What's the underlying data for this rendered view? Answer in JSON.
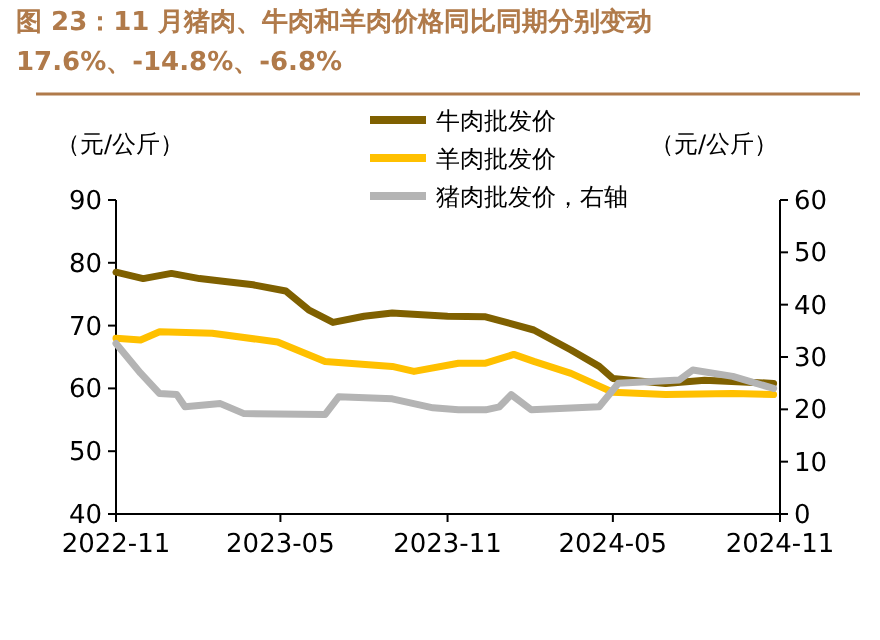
{
  "chart_data": {
    "type": "line",
    "title": "图 23：11 月猪肉、牛肉和羊肉价格同比同期分别变动 17.6%、-14.8%、-6.8%",
    "ylabel": "（元/公斤）",
    "y2label": "（元/公斤）",
    "xlim": [
      "2022-11",
      "2024-11"
    ],
    "xticks": [
      "2022-11",
      "2023-05",
      "2023-11",
      "2024-05",
      "2024-11"
    ],
    "ylim": [
      40,
      90
    ],
    "yticks": [
      40,
      50,
      60,
      70,
      80,
      90
    ],
    "y2lim": [
      0,
      60
    ],
    "y2ticks": [
      0,
      10,
      20,
      30,
      40,
      50,
      60
    ],
    "legend": "top",
    "grid": false,
    "line_style": "solid",
    "series": [
      {
        "name": "牛肉批发价",
        "color": "#7f6000",
        "x": [
          "2022-11-01",
          "2022-12-01",
          "2023-01-01",
          "2023-02-01",
          "2023-03-01",
          "2023-04-01",
          "2023-05-07",
          "2023-06-01",
          "2023-06-28",
          "2023-08-01",
          "2023-09-01",
          "2023-09-10",
          "2023-11-01",
          "2023-12-13",
          "2024-02-04",
          "2024-03-16",
          "2024-04-16",
          "2024-05-01",
          "2024-06-28",
          "2024-08-10",
          "2024-10-25"
        ],
        "values": [
          78.5,
          77.5,
          78.3,
          77.5,
          77,
          76.5,
          75.5,
          72.5,
          70.5,
          71.5,
          72,
          71.9,
          71.5,
          71.4,
          69.3,
          66.1,
          63.5,
          61.6,
          60.8,
          61.3,
          60.8
        ]
      },
      {
        "name": "羊肉批发价",
        "color": "#ffc000",
        "x": [
          "2022-11-01",
          "2022-11-28",
          "2022-12-19",
          "2023-02-15",
          "2023-04-28",
          "2023-06-19",
          "2023-09-01",
          "2023-09-25",
          "2023-11-13",
          "2023-12-13",
          "2024-01-13",
          "2024-02-04",
          "2024-03-16",
          "2024-05-01",
          "2024-06-28",
          "2024-09-10",
          "2024-10-25"
        ],
        "values": [
          68,
          67.7,
          69,
          68.8,
          67.4,
          64.3,
          63.5,
          62.7,
          64,
          64,
          65.4,
          64.3,
          62.4,
          59.4,
          59,
          59.2,
          59
        ]
      },
      {
        "name": "猪肉批发价，右轴",
        "color": "#b4b4b4",
        "axis": "y2",
        "x": [
          "2022-11-01",
          "2022-11-28",
          "2022-12-19",
          "2023-01-07",
          "2023-01-16",
          "2023-02-24",
          "2023-03-22",
          "2023-06-19",
          "2023-07-04",
          "2023-09-01",
          "2023-10-16",
          "2023-11-13",
          "2023-12-13",
          "2023-12-28",
          "2024-01-10",
          "2024-02-01",
          "2024-04-16",
          "2024-05-07",
          "2024-07-13",
          "2024-07-28",
          "2024-09-10",
          "2024-10-25"
        ],
        "values": [
          32.6,
          26.9,
          23,
          22.8,
          20.5,
          21.1,
          19.2,
          19,
          22.4,
          22,
          20.3,
          19.9,
          19.9,
          20.5,
          22.8,
          19.9,
          20.5,
          25,
          25.6,
          27.5,
          26.3,
          24
        ]
      }
    ]
  }
}
